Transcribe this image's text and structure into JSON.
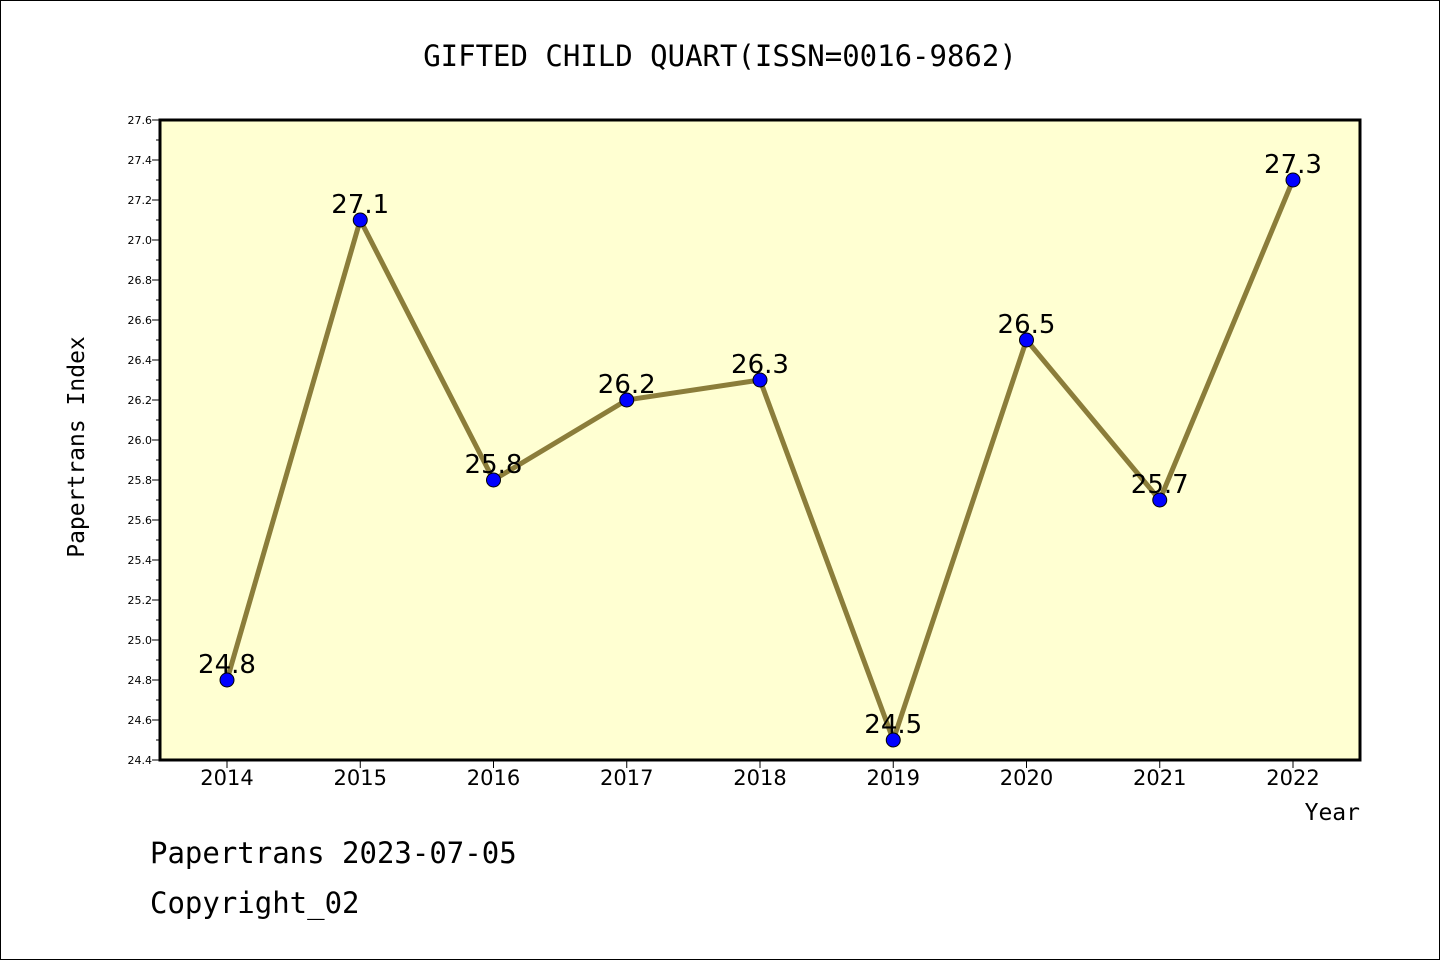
{
  "chart_data": {
    "type": "line",
    "title": "GIFTED CHILD QUART(ISSN=0016-9862)",
    "xlabel": "Year",
    "ylabel": "Papertrans Index",
    "categories": [
      "2014",
      "2015",
      "2016",
      "2017",
      "2018",
      "2019",
      "2020",
      "2021",
      "2022"
    ],
    "values": [
      24.8,
      27.1,
      25.8,
      26.2,
      26.3,
      24.5,
      26.5,
      25.7,
      27.3
    ],
    "data_labels": [
      "24.8",
      "27.1",
      "25.8",
      "26.2",
      "26.3",
      "24.5",
      "26.5",
      "25.7",
      "27.3"
    ],
    "ylim": [
      24.4,
      27.6
    ],
    "yticks": [
      "24.4",
      "24.6",
      "24.8",
      "25.0",
      "25.2",
      "25.4",
      "25.6",
      "25.8",
      "26.0",
      "26.2",
      "26.4",
      "26.6",
      "26.8",
      "27.0",
      "27.2",
      "27.4",
      "27.6"
    ],
    "grid": false,
    "colors": {
      "plot_background": "#ffffd2",
      "line": "#8b7d3a",
      "marker": "#0000ff"
    }
  },
  "footer": {
    "line1": "Papertrans 2023-07-05",
    "line2": "Copyright_02"
  }
}
